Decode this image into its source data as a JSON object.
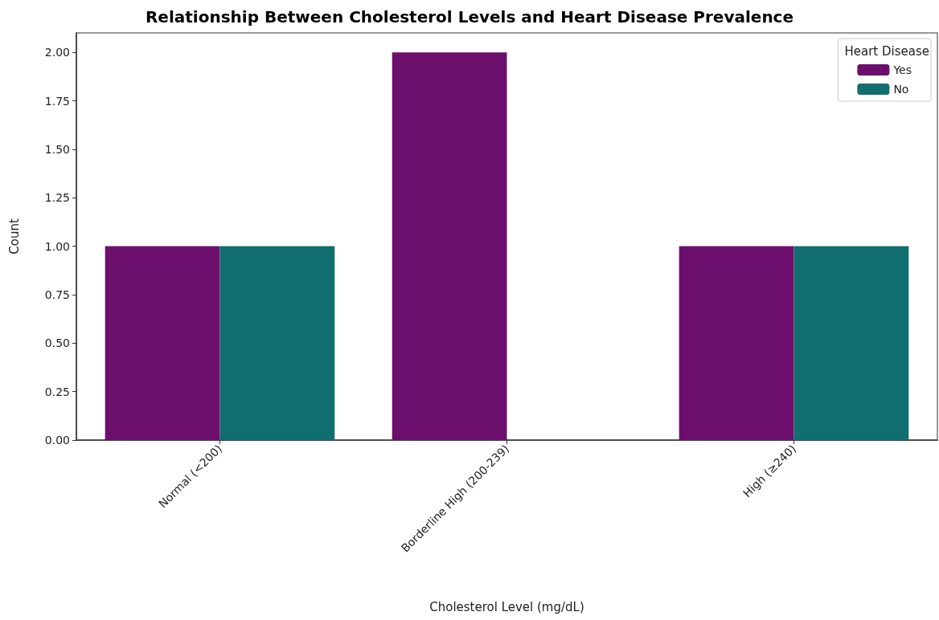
{
  "chart_data": {
    "type": "bar",
    "title": "Relationship Between Cholesterol Levels and Heart Disease Prevalence",
    "xlabel": "Cholesterol Level (mg/dL)",
    "ylabel": "Count",
    "legend_title": "Heart Disease",
    "categories": [
      "Normal (<200)",
      "Borderline High (200-239)",
      "High (≥240)"
    ],
    "series": [
      {
        "name": "Yes",
        "color": "#6c0f6c",
        "values": [
          1,
          2,
          1
        ]
      },
      {
        "name": "No",
        "color": "#116e6e",
        "values": [
          1,
          0,
          1
        ]
      }
    ],
    "ylim": [
      0,
      2.1
    ],
    "yticks": [
      {
        "value": 0,
        "label": "0.00"
      },
      {
        "value": 0.25,
        "label": "0.25"
      },
      {
        "value": 0.5,
        "label": "0.50"
      },
      {
        "value": 0.75,
        "label": "0.75"
      },
      {
        "value": 1,
        "label": "1.00"
      },
      {
        "value": 1.25,
        "label": "1.25"
      },
      {
        "value": 1.5,
        "label": "1.50"
      },
      {
        "value": 1.75,
        "label": "1.75"
      },
      {
        "value": 2,
        "label": "2.00"
      }
    ],
    "grid": false,
    "legend": "top right"
  }
}
